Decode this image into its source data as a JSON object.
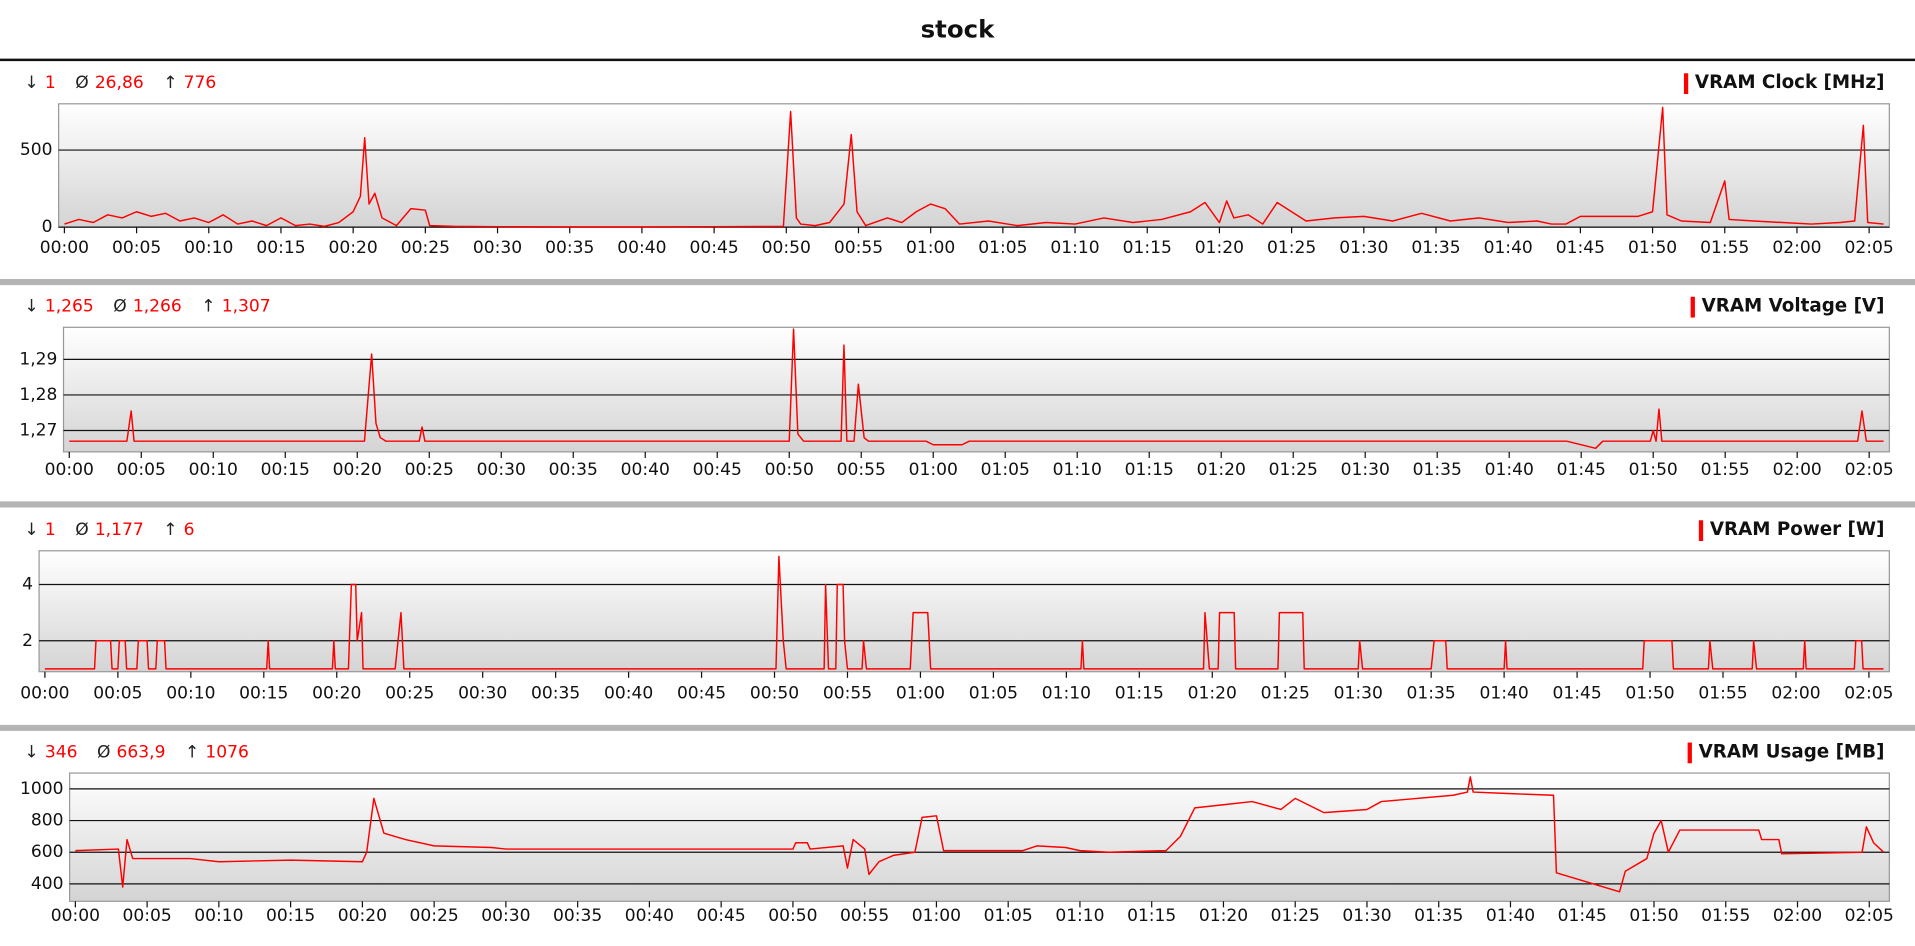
{
  "title": "stock",
  "chart_data": [
    {
      "type": "line",
      "title": "VRAM Clock [MHz]",
      "stats": [
        {
          "symbol": "↓",
          "value": 1
        },
        {
          "symbol": "Ø",
          "value": {
            "value": 26.86,
            "label": "26,86"
          }
        },
        {
          "symbol": "↑",
          "value": 776
        }
      ],
      "xlim": [
        -0.4,
        126.4
      ],
      "ylim": [
        0,
        800
      ],
      "yticks": [
        0,
        500
      ],
      "xticks": [
        {
          "value": 0,
          "label": "00:00"
        },
        {
          "value": 5,
          "label": "00:05"
        },
        {
          "value": 10,
          "label": "00:10"
        },
        {
          "value": 15,
          "label": "00:15"
        },
        {
          "value": 20,
          "label": "00:20"
        },
        {
          "value": 25,
          "label": "00:25"
        },
        {
          "value": 30,
          "label": "00:30"
        },
        {
          "value": 35,
          "label": "00:35"
        },
        {
          "value": 40,
          "label": "00:40"
        },
        {
          "value": 45,
          "label": "00:45"
        },
        {
          "value": 50,
          "label": "00:50"
        },
        {
          "value": 55,
          "label": "00:55"
        },
        {
          "value": 60,
          "label": "01:00"
        },
        {
          "value": 65,
          "label": "01:05"
        },
        {
          "value": 70,
          "label": "01:10"
        },
        {
          "value": 75,
          "label": "01:15"
        },
        {
          "value": 80,
          "label": "01:20"
        },
        {
          "value": 85,
          "label": "01:25"
        },
        {
          "value": 90,
          "label": "01:30"
        },
        {
          "value": 95,
          "label": "01:35"
        },
        {
          "value": 100,
          "label": "01:40"
        },
        {
          "value": 105,
          "label": "01:45"
        },
        {
          "value": 110,
          "label": "01:50"
        },
        {
          "value": 115,
          "label": "01:55"
        },
        {
          "value": 120,
          "label": "02:00"
        },
        {
          "value": 125,
          "label": "02:05"
        }
      ],
      "grid": true,
      "x": [
        0,
        1,
        2,
        3,
        4,
        5,
        6,
        7,
        8,
        9,
        10,
        11,
        12,
        13,
        14,
        15,
        16,
        17,
        18,
        19,
        20,
        20.5,
        20.8,
        21.1,
        21.5,
        22,
        23,
        24,
        25,
        25.3,
        27,
        30,
        35,
        40,
        45,
        49.8,
        50.3,
        50.7,
        51,
        52,
        53,
        54,
        54.5,
        54.9,
        55.5,
        57,
        58,
        59,
        60,
        61,
        62,
        64,
        66,
        68,
        70,
        72,
        74,
        76,
        78,
        79,
        80,
        80.5,
        81,
        82,
        83,
        84,
        85,
        86,
        88,
        90,
        92,
        94,
        96,
        98,
        100,
        102,
        103,
        104,
        105,
        107,
        109,
        110,
        110.7,
        111,
        112,
        114,
        115,
        115.3,
        117,
        119,
        121,
        123,
        124,
        124.6,
        124.9,
        126
      ],
      "series": [
        {
          "name": "VRAM Clock [MHz]",
          "color": "#ff0000",
          "values": [
            20,
            50,
            30,
            80,
            60,
            100,
            70,
            90,
            40,
            60,
            30,
            80,
            20,
            40,
            10,
            60,
            10,
            20,
            5,
            30,
            100,
            200,
            580,
            150,
            220,
            60,
            10,
            120,
            110,
            10,
            5,
            3,
            2,
            2,
            3,
            5,
            750,
            60,
            20,
            10,
            30,
            150,
            600,
            100,
            10,
            60,
            30,
            100,
            150,
            120,
            20,
            40,
            10,
            30,
            20,
            60,
            30,
            50,
            100,
            160,
            30,
            170,
            60,
            80,
            20,
            160,
            100,
            40,
            60,
            70,
            40,
            90,
            40,
            60,
            30,
            40,
            20,
            20,
            70,
            70,
            70,
            100,
            776,
            80,
            40,
            30,
            300,
            50,
            40,
            30,
            20,
            30,
            40,
            660,
            30,
            20
          ]
        }
      ]
    },
    {
      "type": "line",
      "title": "VRAM Voltage [V]",
      "stats": [
        {
          "symbol": "↓",
          "value": {
            "value": 1.265,
            "label": "1,265"
          }
        },
        {
          "symbol": "Ø",
          "value": {
            "value": 1.266,
            "label": "1,266"
          }
        },
        {
          "symbol": "↑",
          "value": {
            "value": 1.307,
            "label": "1,307"
          }
        }
      ],
      "xlim": [
        -0.4,
        126.4
      ],
      "ylim": [
        1.264,
        1.299
      ],
      "yticks": [
        {
          "value": 1.27,
          "label": "1,27"
        },
        {
          "value": 1.28,
          "label": "1,28"
        },
        {
          "value": 1.29,
          "label": "1,29"
        }
      ],
      "xticks": [
        {
          "value": 0,
          "label": "00:00"
        },
        {
          "value": 5,
          "label": "00:05"
        },
        {
          "value": 10,
          "label": "00:10"
        },
        {
          "value": 15,
          "label": "00:15"
        },
        {
          "value": 20,
          "label": "00:20"
        },
        {
          "value": 25,
          "label": "00:25"
        },
        {
          "value": 30,
          "label": "00:30"
        },
        {
          "value": 35,
          "label": "00:35"
        },
        {
          "value": 40,
          "label": "00:40"
        },
        {
          "value": 45,
          "label": "00:45"
        },
        {
          "value": 50,
          "label": "00:50"
        },
        {
          "value": 55,
          "label": "00:55"
        },
        {
          "value": 60,
          "label": "01:00"
        },
        {
          "value": 65,
          "label": "01:05"
        },
        {
          "value": 70,
          "label": "01:10"
        },
        {
          "value": 75,
          "label": "01:15"
        },
        {
          "value": 80,
          "label": "01:20"
        },
        {
          "value": 85,
          "label": "01:25"
        },
        {
          "value": 90,
          "label": "01:30"
        },
        {
          "value": 95,
          "label": "01:35"
        },
        {
          "value": 100,
          "label": "01:40"
        },
        {
          "value": 105,
          "label": "01:45"
        },
        {
          "value": 110,
          "label": "01:50"
        },
        {
          "value": 115,
          "label": "01:55"
        },
        {
          "value": 120,
          "label": "02:00"
        },
        {
          "value": 125,
          "label": "02:05"
        }
      ],
      "grid": true,
      "x": [
        0,
        4,
        4.3,
        4.5,
        20.5,
        21,
        21.3,
        21.6,
        22,
        24.3,
        24.5,
        24.7,
        50,
        50.3,
        50.6,
        51,
        53.6,
        53.8,
        54,
        54.5,
        54.8,
        55.2,
        55.5,
        59.5,
        60,
        62,
        62.5,
        104,
        106,
        106.5,
        109.8,
        110,
        110.2,
        110.4,
        110.6,
        124.2,
        124.5,
        124.8,
        126
      ],
      "series": [
        {
          "name": "VRAM Voltage [V]",
          "color": "#ff0000",
          "values": [
            1.267,
            1.267,
            1.2755,
            1.267,
            1.267,
            1.2915,
            1.272,
            1.268,
            1.267,
            1.267,
            1.271,
            1.267,
            1.267,
            1.2985,
            1.269,
            1.267,
            1.267,
            1.294,
            1.267,
            1.267,
            1.283,
            1.268,
            1.267,
            1.267,
            1.266,
            1.266,
            1.267,
            1.267,
            1.265,
            1.267,
            1.267,
            1.27,
            1.267,
            1.276,
            1.267,
            1.267,
            1.2755,
            1.267,
            1.267
          ]
        }
      ]
    },
    {
      "type": "line",
      "title": "VRAM Power [W]",
      "stats": [
        {
          "symbol": "↓",
          "value": 1
        },
        {
          "symbol": "Ø",
          "value": {
            "value": 1.177,
            "label": "1,177"
          }
        },
        {
          "symbol": "↑",
          "value": 6
        }
      ],
      "xlim": [
        -0.4,
        126.4
      ],
      "ylim": [
        0.9,
        5.2
      ],
      "yticks": [
        2,
        4
      ],
      "xticks": [
        {
          "value": 0,
          "label": "00:00"
        },
        {
          "value": 5,
          "label": "00:05"
        },
        {
          "value": 10,
          "label": "00:10"
        },
        {
          "value": 15,
          "label": "00:15"
        },
        {
          "value": 20,
          "label": "00:20"
        },
        {
          "value": 25,
          "label": "00:25"
        },
        {
          "value": 30,
          "label": "00:30"
        },
        {
          "value": 35,
          "label": "00:35"
        },
        {
          "value": 40,
          "label": "00:40"
        },
        {
          "value": 45,
          "label": "00:45"
        },
        {
          "value": 50,
          "label": "00:50"
        },
        {
          "value": 55,
          "label": "00:55"
        },
        {
          "value": 60,
          "label": "01:00"
        },
        {
          "value": 65,
          "label": "01:05"
        },
        {
          "value": 70,
          "label": "01:10"
        },
        {
          "value": 75,
          "label": "01:15"
        },
        {
          "value": 80,
          "label": "01:20"
        },
        {
          "value": 85,
          "label": "01:25"
        },
        {
          "value": 90,
          "label": "01:30"
        },
        {
          "value": 95,
          "label": "01:35"
        },
        {
          "value": 100,
          "label": "01:40"
        },
        {
          "value": 105,
          "label": "01:45"
        },
        {
          "value": 110,
          "label": "01:50"
        },
        {
          "value": 115,
          "label": "01:55"
        },
        {
          "value": 120,
          "label": "02:00"
        },
        {
          "value": 125,
          "label": "02:05"
        }
      ],
      "grid": true,
      "x": [
        0,
        3.4,
        3.5,
        4.5,
        4.6,
        5,
        5.1,
        5.5,
        5.6,
        6.3,
        6.4,
        7,
        7.1,
        7.6,
        7.7,
        8.2,
        8.3,
        15.2,
        15.3,
        15.4,
        19.7,
        19.8,
        19.9,
        20.8,
        21,
        21.3,
        21.4,
        21.7,
        21.8,
        24,
        24.2,
        24.4,
        24.6,
        50.1,
        50.3,
        50.6,
        50.8,
        53.4,
        53.5,
        53.7,
        54.2,
        54.3,
        54.7,
        54.8,
        55,
        56,
        56.1,
        56.3,
        59.3,
        59.5,
        60.5,
        60.7,
        71,
        71.1,
        71.2,
        79.4,
        79.5,
        79.8,
        80.4,
        80.5,
        81.5,
        81.6,
        84.5,
        84.6,
        86.2,
        86.3,
        90,
        90.1,
        90.3,
        95,
        95.2,
        96,
        96.1,
        100,
        100.1,
        100.2,
        109.5,
        109.6,
        111.5,
        111.6,
        114,
        114.1,
        114.3,
        117,
        117.1,
        117.3,
        120.5,
        120.6,
        120.7,
        124,
        124.1,
        124.5,
        124.6,
        126
      ],
      "series": [
        {
          "name": "VRAM Power [W]",
          "color": "#ff0000",
          "values": [
            1,
            1,
            2,
            2,
            1,
            1,
            2,
            2,
            1,
            1,
            2,
            2,
            1,
            1,
            2,
            2,
            1,
            1,
            2,
            1,
            1,
            2,
            1,
            1,
            4,
            4,
            2,
            3,
            1,
            1,
            2,
            3,
            1,
            1,
            5,
            2,
            1,
            1,
            4,
            1,
            1,
            4,
            4,
            2,
            1,
            1,
            2,
            1,
            1,
            3,
            3,
            1,
            1,
            2,
            1,
            1,
            3,
            1,
            1,
            3,
            3,
            1,
            1,
            3,
            3,
            1,
            1,
            2,
            1,
            1,
            2,
            2,
            1,
            1,
            2,
            1,
            1,
            2,
            2,
            1,
            1,
            2,
            1,
            1,
            2,
            1,
            1,
            2,
            1,
            1,
            2,
            2,
            1,
            1
          ]
        }
      ]
    },
    {
      "type": "line",
      "title": "VRAM Usage [MB]",
      "stats": [
        {
          "symbol": "↓",
          "value": 346
        },
        {
          "symbol": "Ø",
          "value": {
            "value": 663.9,
            "label": "663,9"
          }
        },
        {
          "symbol": "↑",
          "value": 1076
        }
      ],
      "xlim": [
        -0.4,
        126.4
      ],
      "ylim": [
        290,
        1100
      ],
      "yticks": [
        400,
        600,
        800,
        1000
      ],
      "xticks": [
        {
          "value": 0,
          "label": "00:00"
        },
        {
          "value": 5,
          "label": "00:05"
        },
        {
          "value": 10,
          "label": "00:10"
        },
        {
          "value": 15,
          "label": "00:15"
        },
        {
          "value": 20,
          "label": "00:20"
        },
        {
          "value": 25,
          "label": "00:25"
        },
        {
          "value": 30,
          "label": "00:30"
        },
        {
          "value": 35,
          "label": "00:35"
        },
        {
          "value": 40,
          "label": "00:40"
        },
        {
          "value": 45,
          "label": "00:45"
        },
        {
          "value": 50,
          "label": "00:50"
        },
        {
          "value": 55,
          "label": "00:55"
        },
        {
          "value": 60,
          "label": "01:00"
        },
        {
          "value": 65,
          "label": "01:05"
        },
        {
          "value": 70,
          "label": "01:10"
        },
        {
          "value": 75,
          "label": "01:15"
        },
        {
          "value": 80,
          "label": "01:20"
        },
        {
          "value": 85,
          "label": "01:25"
        },
        {
          "value": 90,
          "label": "01:30"
        },
        {
          "value": 95,
          "label": "01:35"
        },
        {
          "value": 100,
          "label": "01:40"
        },
        {
          "value": 105,
          "label": "01:45"
        },
        {
          "value": 110,
          "label": "01:50"
        },
        {
          "value": 115,
          "label": "01:55"
        },
        {
          "value": 120,
          "label": "02:00"
        },
        {
          "value": 125,
          "label": "02:05"
        }
      ],
      "grid": true,
      "x": [
        0,
        3,
        3.3,
        3.6,
        4,
        8,
        10,
        15,
        20,
        20.3,
        20.8,
        21.5,
        23,
        25,
        29,
        30,
        45,
        50,
        50.2,
        51,
        51.2,
        53.5,
        53.8,
        54.2,
        55,
        55.3,
        56,
        57,
        58.5,
        59,
        60,
        60.5,
        66,
        67,
        69,
        70,
        72,
        76,
        77,
        78,
        80,
        82,
        84,
        85,
        87,
        90,
        91,
        96,
        97,
        97.2,
        97.4,
        100,
        103,
        103.2,
        107.6,
        108,
        109.5,
        110,
        110.5,
        111,
        111.8,
        117.3,
        117.5,
        118.7,
        118.9,
        124.5,
        124.8,
        125.3,
        126
      ],
      "series": [
        {
          "name": "VRAM Usage [MB]",
          "color": "#ff0000",
          "values": [
            610,
            620,
            380,
            680,
            560,
            560,
            540,
            550,
            540,
            600,
            940,
            720,
            680,
            640,
            630,
            620,
            620,
            620,
            660,
            660,
            620,
            640,
            500,
            680,
            620,
            460,
            540,
            580,
            600,
            820,
            830,
            610,
            610,
            640,
            630,
            610,
            600,
            610,
            700,
            880,
            900,
            920,
            870,
            940,
            850,
            870,
            920,
            960,
            980,
            1076,
            980,
            970,
            960,
            470,
            350,
            480,
            560,
            720,
            800,
            600,
            740,
            740,
            680,
            680,
            590,
            600,
            760,
            660,
            600
          ]
        }
      ]
    }
  ]
}
